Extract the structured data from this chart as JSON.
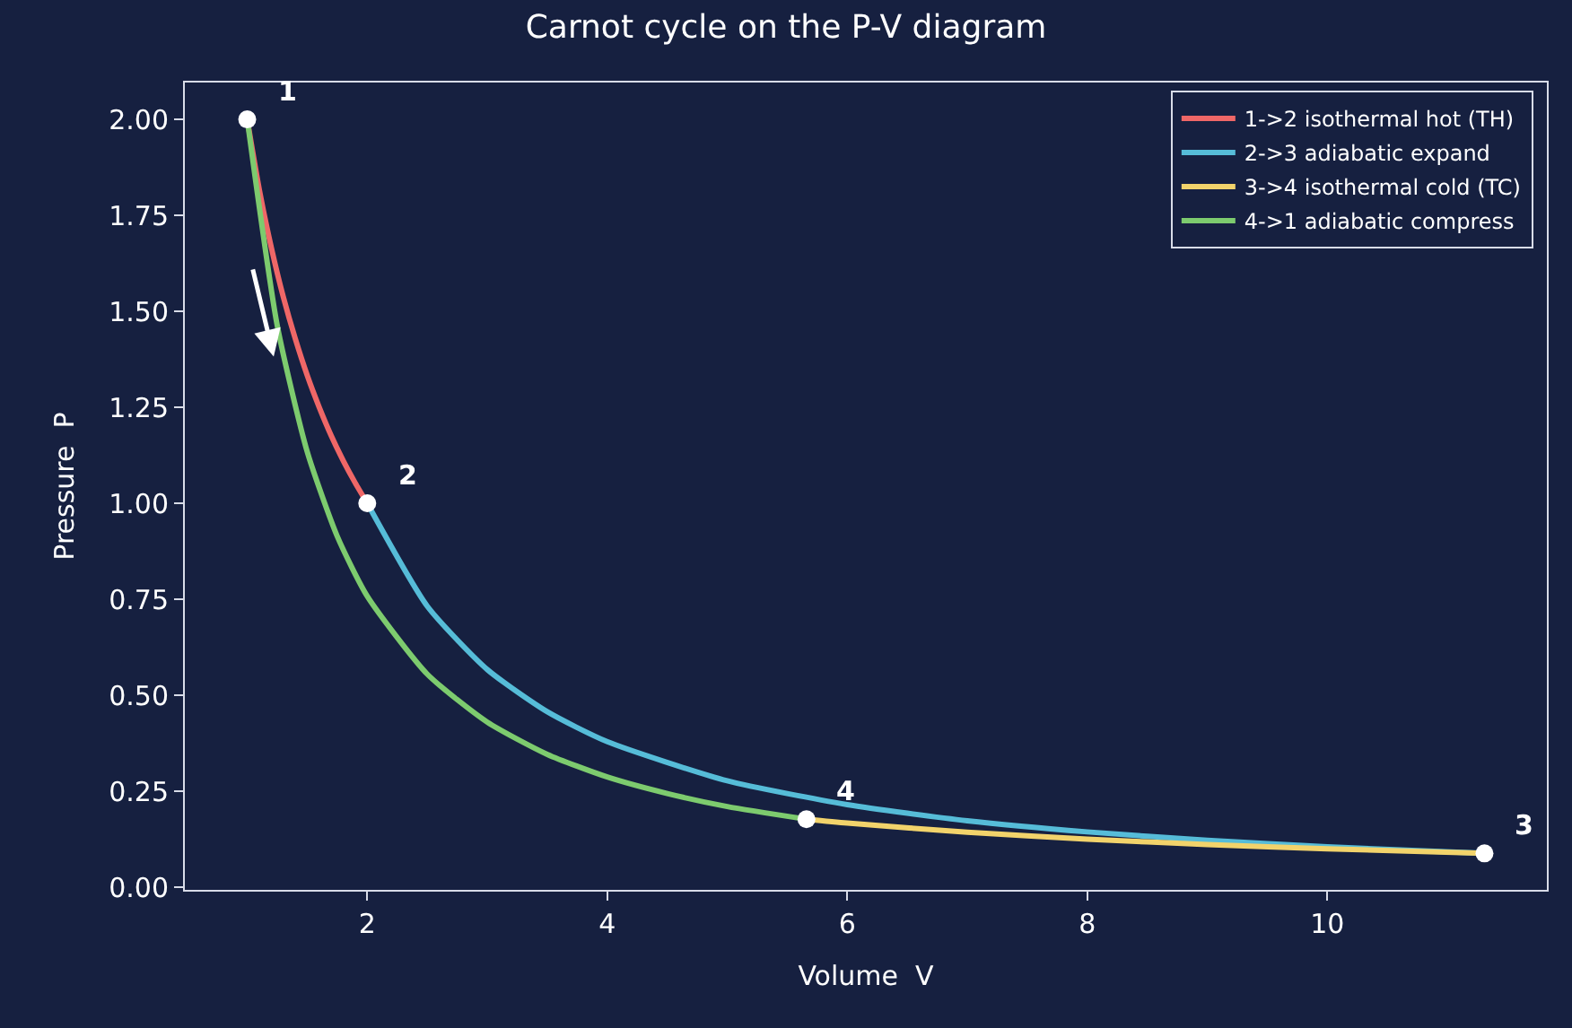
{
  "chart_data": {
    "type": "line",
    "title": "Carnot cycle on the P-V diagram",
    "xlabel": "Volume  V",
    "ylabel": "Pressure  P",
    "xlim": [
      0.48,
      11.83
    ],
    "ylim": [
      -0.007,
      2.096
    ],
    "xticks": [
      2,
      4,
      6,
      8,
      10
    ],
    "yticks": [
      {
        "value": 0,
        "label": "0.00"
      },
      {
        "value": 0.25,
        "label": "0.25"
      },
      {
        "value": 0.5,
        "label": "0.50"
      },
      {
        "value": 0.75,
        "label": "0.75"
      },
      {
        "value": 1,
        "label": "1.00"
      },
      {
        "value": 1.25,
        "label": "1.25"
      },
      {
        "value": 1.5,
        "label": "1.50"
      },
      {
        "value": 1.75,
        "label": "1.75"
      },
      {
        "value": 2,
        "label": "2.00"
      }
    ],
    "grid": false,
    "legend": "top right",
    "series": [
      {
        "name": "1->2 isothermal hot (TH)",
        "color": "#ef6767",
        "x": [
          1,
          1.1,
          1.2,
          1.3,
          1.4,
          1.5,
          1.6,
          1.7,
          1.8,
          1.9,
          2
        ],
        "values": [
          2,
          1.818,
          1.667,
          1.538,
          1.429,
          1.333,
          1.25,
          1.176,
          1.111,
          1.053,
          1
        ]
      },
      {
        "name": "2->3 adiabatic expand",
        "color": "#56bcd8",
        "x": [
          2,
          2.5,
          3,
          3.5,
          4,
          5,
          6,
          7,
          8,
          9,
          10,
          11.31
        ],
        "values": [
          1,
          0.732,
          0.567,
          0.457,
          0.379,
          0.277,
          0.215,
          0.173,
          0.144,
          0.122,
          0.105,
          0.088
        ]
      },
      {
        "name": "3->4 isothermal cold (TC)",
        "color": "#f2d36b",
        "x": [
          11.31,
          10,
          9,
          8,
          7,
          6,
          5.66
        ],
        "values": [
          0.088,
          0.1,
          0.111,
          0.125,
          0.143,
          0.167,
          0.177
        ]
      },
      {
        "name": "4->1 adiabatic compress",
        "color": "#7dcb6e",
        "x": [
          5.66,
          5,
          4.5,
          4,
          3.5,
          3,
          2.5,
          2,
          1.75,
          1.5,
          1.25,
          1
        ],
        "values": [
          0.177,
          0.21,
          0.244,
          0.287,
          0.346,
          0.43,
          0.555,
          0.758,
          0.914,
          1.134,
          1.463,
          2
        ]
      },
      {
        "type": "scatter",
        "color": "#ffffff",
        "marker": "circle",
        "x": [
          1,
          2,
          11.31,
          5.66
        ],
        "values": [
          2,
          1,
          0.088,
          0.177
        ]
      }
    ],
    "annotations": [
      {
        "text": "1",
        "x": 1,
        "y": 2
      },
      {
        "text": "2",
        "x": 2,
        "y": 1
      },
      {
        "text": "3",
        "x": 11.31,
        "y": 0.088
      },
      {
        "text": "4",
        "x": 5.66,
        "y": 0.177
      }
    ]
  }
}
